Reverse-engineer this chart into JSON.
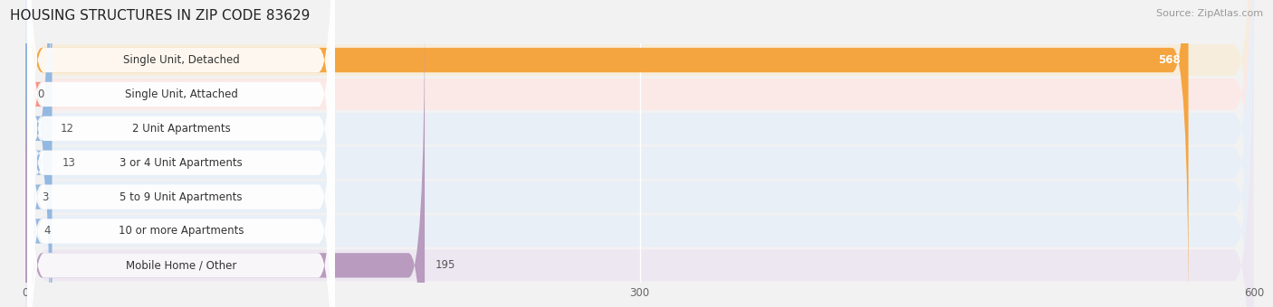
{
  "title": "HOUSING STRUCTURES IN ZIP CODE 83629",
  "source": "Source: ZipAtlas.com",
  "categories": [
    "Single Unit, Detached",
    "Single Unit, Attached",
    "2 Unit Apartments",
    "3 or 4 Unit Apartments",
    "5 to 9 Unit Apartments",
    "10 or more Apartments",
    "Mobile Home / Other"
  ],
  "values": [
    568,
    0,
    12,
    13,
    3,
    4,
    195
  ],
  "bar_colors": [
    "#F5A540",
    "#F4948A",
    "#94B8E0",
    "#94B8E0",
    "#94B8E0",
    "#94B8E0",
    "#B89BBE"
  ],
  "row_bg_colors": [
    "#F7EDDC",
    "#FAE9E7",
    "#E8EFF7",
    "#E8EFF7",
    "#E8EFF7",
    "#E8EFF7",
    "#EDE7F1"
  ],
  "xlim": [
    0,
    600
  ],
  "xticks": [
    0,
    300,
    600
  ],
  "title_fontsize": 11,
  "source_fontsize": 8,
  "label_fontsize": 8.5,
  "value_fontsize": 8.5,
  "background_color": "#F2F2F2"
}
